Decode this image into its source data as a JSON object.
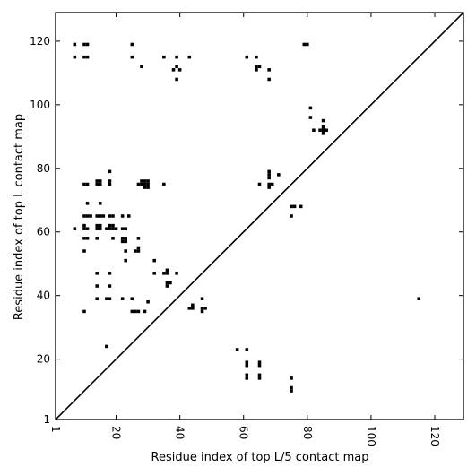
{
  "chart_data": {
    "type": "scatter",
    "xlabel": "Residue index of top L/5 contact map",
    "ylabel": "Residue index of top L contact map",
    "xlim": [
      1,
      129
    ],
    "ylim": [
      1,
      129
    ],
    "x_ticks": [
      1,
      20,
      40,
      60,
      80,
      100,
      120
    ],
    "y_ticks": [
      1,
      20,
      40,
      60,
      80,
      100,
      120
    ],
    "x_tick_labels": [
      "1",
      "20",
      "40",
      "60",
      "80",
      "100",
      "120"
    ],
    "y_tick_labels": [
      "1",
      "20",
      "40",
      "60",
      "80",
      "100",
      "120"
    ],
    "x_tick_label_rotation": "vertical",
    "grid": false,
    "legend": "none",
    "diagonal": {
      "from": [
        1,
        1
      ],
      "to": [
        129,
        129
      ]
    },
    "marker_color": "#000000",
    "series": [
      {
        "points": [
          [
            7,
            119
          ],
          [
            10,
            119
          ],
          [
            11,
            119
          ],
          [
            7,
            115
          ],
          [
            10,
            115
          ],
          [
            11,
            115
          ],
          [
            25,
            119
          ],
          [
            25,
            115
          ],
          [
            28,
            112
          ],
          [
            35,
            115
          ],
          [
            39,
            115
          ],
          [
            43,
            115
          ],
          [
            39,
            112
          ],
          [
            38,
            111
          ],
          [
            40,
            111
          ],
          [
            39,
            108
          ],
          [
            61,
            115
          ],
          [
            64,
            115
          ],
          [
            64,
            112
          ],
          [
            65,
            112
          ],
          [
            64,
            111
          ],
          [
            68,
            111
          ],
          [
            68,
            108
          ],
          [
            79,
            119
          ],
          [
            80,
            119
          ],
          [
            81,
            99
          ],
          [
            81,
            96
          ],
          [
            82,
            92
          ],
          [
            85,
            95
          ],
          [
            84,
            92
          ],
          [
            85,
            92
          ],
          [
            86,
            92
          ],
          [
            85,
            93
          ],
          [
            85,
            91
          ],
          [
            18,
            79
          ],
          [
            10,
            75
          ],
          [
            11,
            75
          ],
          [
            14,
            76
          ],
          [
            15,
            76
          ],
          [
            14,
            75
          ],
          [
            15,
            75
          ],
          [
            18,
            76
          ],
          [
            18,
            75
          ],
          [
            27,
            75
          ],
          [
            28,
            76
          ],
          [
            29,
            76
          ],
          [
            30,
            76
          ],
          [
            28,
            75
          ],
          [
            29,
            75
          ],
          [
            30,
            75
          ],
          [
            29,
            74
          ],
          [
            30,
            74
          ],
          [
            35,
            75
          ],
          [
            68,
            79
          ],
          [
            68,
            78
          ],
          [
            68,
            77
          ],
          [
            71,
            78
          ],
          [
            65,
            75
          ],
          [
            68,
            75
          ],
          [
            69,
            75
          ],
          [
            68,
            74
          ],
          [
            75,
            68
          ],
          [
            76,
            68
          ],
          [
            78,
            68
          ],
          [
            75,
            65
          ],
          [
            11,
            69
          ],
          [
            15,
            69
          ],
          [
            10,
            65
          ],
          [
            11,
            65
          ],
          [
            12,
            65
          ],
          [
            14,
            65
          ],
          [
            15,
            65
          ],
          [
            16,
            65
          ],
          [
            18,
            65
          ],
          [
            19,
            65
          ],
          [
            22,
            65
          ],
          [
            24,
            65
          ],
          [
            7,
            61
          ],
          [
            10,
            62
          ],
          [
            14,
            62
          ],
          [
            15,
            62
          ],
          [
            18,
            62
          ],
          [
            19,
            62
          ],
          [
            10,
            61
          ],
          [
            11,
            61
          ],
          [
            14,
            61
          ],
          [
            15,
            61
          ],
          [
            17,
            61
          ],
          [
            18,
            61
          ],
          [
            19,
            61
          ],
          [
            20,
            61
          ],
          [
            22,
            61
          ],
          [
            23,
            61
          ],
          [
            10,
            58
          ],
          [
            11,
            58
          ],
          [
            14,
            58
          ],
          [
            19,
            58
          ],
          [
            22,
            58
          ],
          [
            23,
            58
          ],
          [
            27,
            58
          ],
          [
            22,
            57
          ],
          [
            23,
            57
          ],
          [
            10,
            54
          ],
          [
            23,
            54
          ],
          [
            26,
            54
          ],
          [
            27,
            54
          ],
          [
            27,
            55
          ],
          [
            23,
            51
          ],
          [
            32,
            51
          ],
          [
            14,
            47
          ],
          [
            18,
            47
          ],
          [
            32,
            47
          ],
          [
            35,
            47
          ],
          [
            36,
            47
          ],
          [
            39,
            47
          ],
          [
            36,
            48
          ],
          [
            14,
            43
          ],
          [
            18,
            43
          ],
          [
            36,
            44
          ],
          [
            37,
            44
          ],
          [
            36,
            43
          ],
          [
            14,
            39
          ],
          [
            17,
            39
          ],
          [
            18,
            39
          ],
          [
            22,
            39
          ],
          [
            25,
            39
          ],
          [
            30,
            38
          ],
          [
            47,
            39
          ],
          [
            10,
            35
          ],
          [
            25,
            35
          ],
          [
            26,
            35
          ],
          [
            27,
            35
          ],
          [
            29,
            35
          ],
          [
            43,
            36
          ],
          [
            44,
            36
          ],
          [
            44,
            37
          ],
          [
            47,
            36
          ],
          [
            48,
            36
          ],
          [
            47,
            35
          ],
          [
            17,
            24
          ],
          [
            58,
            23
          ],
          [
            61,
            23
          ],
          [
            61,
            19
          ],
          [
            65,
            19
          ],
          [
            61,
            18
          ],
          [
            65,
            18
          ],
          [
            61,
            15
          ],
          [
            65,
            15
          ],
          [
            61,
            14
          ],
          [
            65,
            14
          ],
          [
            75,
            14
          ],
          [
            75,
            11
          ],
          [
            75,
            10
          ],
          [
            115,
            39
          ]
        ]
      }
    ]
  }
}
